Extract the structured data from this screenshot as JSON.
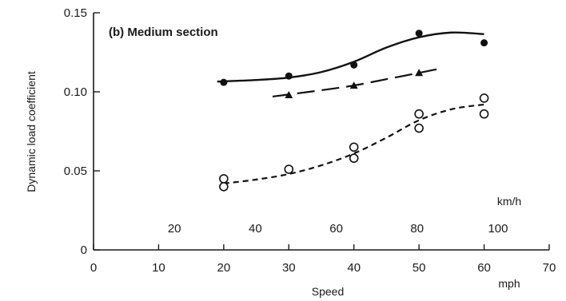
{
  "chart_data": {
    "type": "scatter",
    "panel_title": "(b) Medium section",
    "ylabel": "Dynamic load coefficient",
    "xlabel": "Speed",
    "x_unit": "mph",
    "secondary_x_unit": "km/h",
    "xlim": [
      0,
      70
    ],
    "ylim": [
      0,
      0.15
    ],
    "x_ticks": [
      "0",
      "10",
      "20",
      "30",
      "40",
      "50",
      "60",
      "70"
    ],
    "y_ticks": [
      "0",
      "0.05",
      "0.10",
      "0.15"
    ],
    "secondary_x_ticks": [
      "20",
      "40",
      "60",
      "80",
      "100"
    ],
    "grid": false,
    "series": [
      {
        "marker": "filled-circle",
        "line_style": "solid",
        "points": [
          [
            20,
            0.106
          ],
          [
            30,
            0.11
          ],
          [
            40,
            0.117
          ],
          [
            50,
            0.137
          ],
          [
            60,
            0.131
          ]
        ],
        "curve": [
          [
            19,
            0.1065
          ],
          [
            25,
            0.1075
          ],
          [
            30,
            0.109
          ],
          [
            35,
            0.1125
          ],
          [
            40,
            0.119
          ],
          [
            45,
            0.128
          ],
          [
            50,
            0.1345
          ],
          [
            55,
            0.1375
          ],
          [
            60,
            0.1365
          ]
        ]
      },
      {
        "marker": "filled-triangle",
        "line_style": "dashed",
        "points": [
          [
            30,
            0.098
          ],
          [
            40,
            0.104
          ],
          [
            50,
            0.112
          ]
        ],
        "curve": [
          [
            27.5,
            0.097
          ],
          [
            35,
            0.101
          ],
          [
            40,
            0.104
          ],
          [
            45,
            0.108
          ],
          [
            50,
            0.112
          ],
          [
            53,
            0.1145
          ]
        ]
      },
      {
        "marker": "open-circle",
        "line_style": "short-dashed",
        "points": [
          [
            20,
            0.045
          ],
          [
            20,
            0.04
          ],
          [
            30,
            0.051
          ],
          [
            40,
            0.065
          ],
          [
            40,
            0.058
          ],
          [
            50,
            0.086
          ],
          [
            50,
            0.077
          ],
          [
            60,
            0.096
          ],
          [
            60,
            0.086
          ]
        ],
        "curve": [
          [
            20,
            0.042
          ],
          [
            25,
            0.0445
          ],
          [
            30,
            0.048
          ],
          [
            35,
            0.0535
          ],
          [
            40,
            0.061
          ],
          [
            45,
            0.071
          ],
          [
            50,
            0.082
          ],
          [
            55,
            0.089
          ],
          [
            60,
            0.092
          ]
        ]
      }
    ]
  }
}
